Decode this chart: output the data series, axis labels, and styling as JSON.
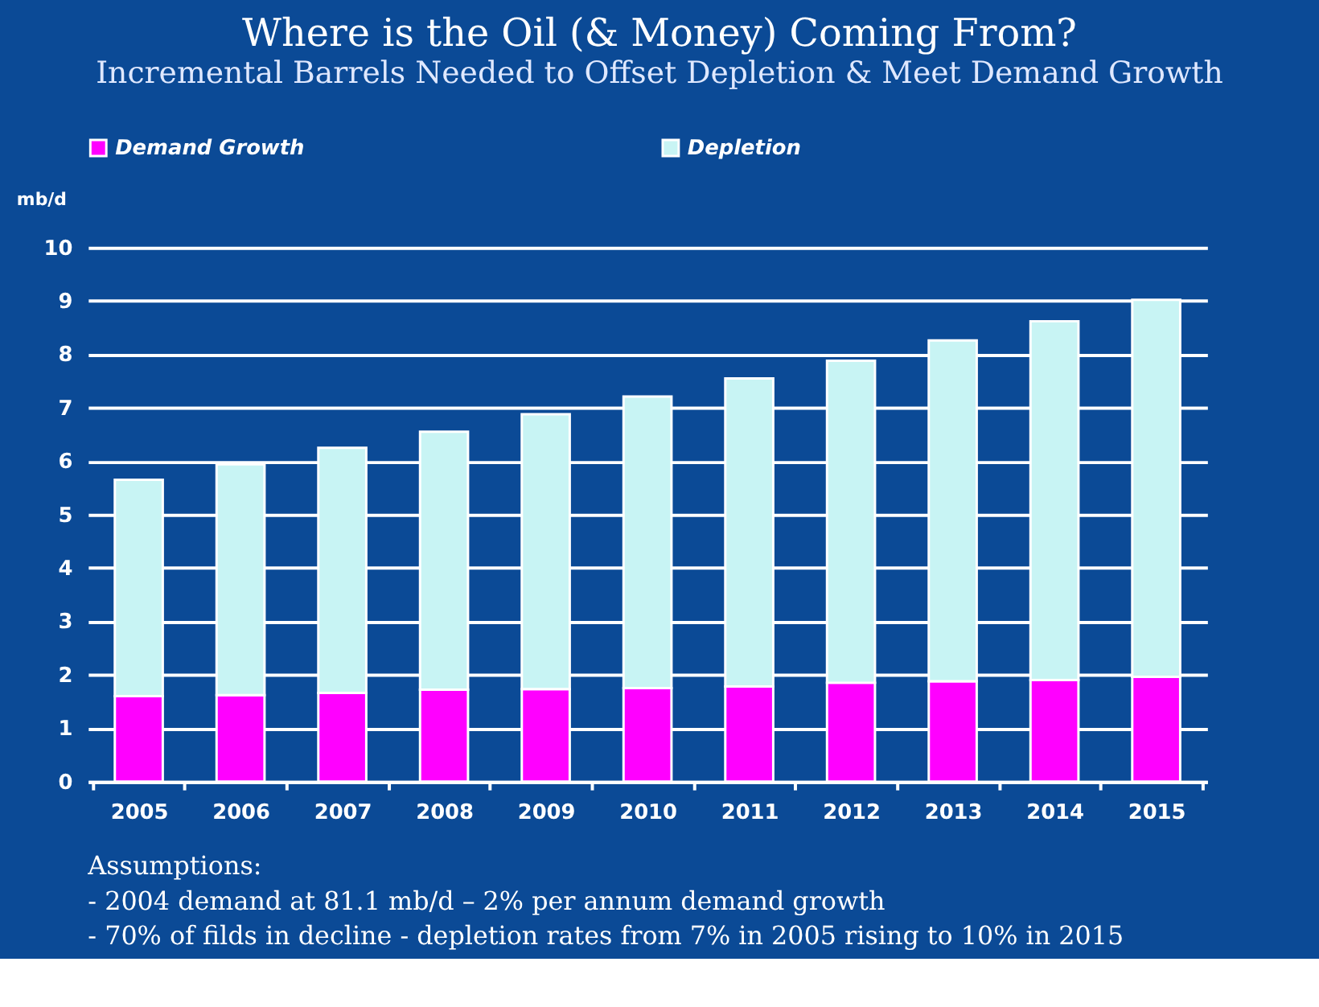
{
  "chart_data": {
    "type": "bar",
    "title": "Where is the Oil (& Money) Coming From?",
    "subtitle": "Incremental Barrels Needed to Offset Depletion & Meet Demand Growth",
    "ylabel": "mb/d",
    "categories": [
      "2005",
      "2006",
      "2007",
      "2008",
      "2009",
      "2010",
      "2011",
      "2012",
      "2013",
      "2014",
      "2015"
    ],
    "stacked": true,
    "series": [
      {
        "name": "Demand Growth",
        "color": "#ff00ff",
        "values": [
          1.6,
          1.62,
          1.66,
          1.72,
          1.73,
          1.75,
          1.78,
          1.85,
          1.88,
          1.9,
          1.96
        ]
      },
      {
        "name": "Depletion",
        "color": "#c8f4f4",
        "values": [
          4.05,
          4.32,
          4.59,
          4.83,
          5.15,
          5.46,
          5.77,
          6.03,
          6.38,
          6.72,
          7.06
        ]
      }
    ],
    "ylim": [
      0,
      10
    ],
    "yticks": [
      0,
      1,
      2,
      3,
      4,
      5,
      6,
      7,
      8,
      9,
      10
    ],
    "grid": "y",
    "legend": "top",
    "annotations": [
      "Assumptions:",
      "-  2004 demand at 81.1 mb/d – 2% per annum demand growth",
      "-  70% of filds in decline - depletion rates from 7% in 2005 rising to 10% in 2015"
    ]
  }
}
